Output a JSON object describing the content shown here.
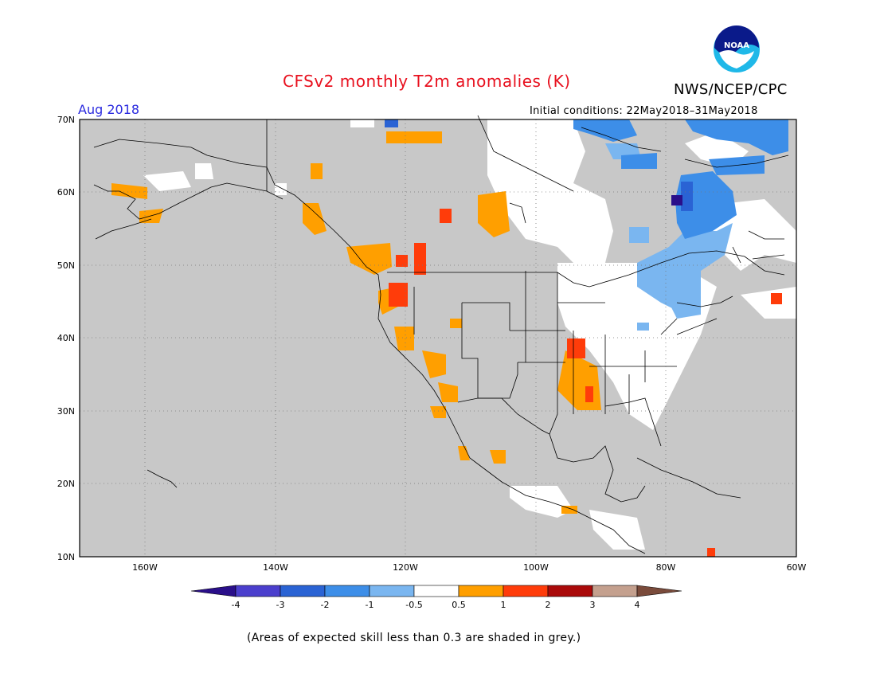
{
  "header": {
    "title": "CFSv2 monthly T2m anomalies (K)",
    "agency": "NWS/NCEP/CPC",
    "logo_text": "NOAA",
    "month": "Aug 2018",
    "initial_conditions": "Initial conditions: 22May2018–31May2018"
  },
  "map": {
    "region": "North America",
    "lat_ticks": [
      "70N",
      "60N",
      "50N",
      "40N",
      "30N",
      "20N",
      "10N"
    ],
    "lon_ticks": [
      "160W",
      "140W",
      "120W",
      "100W",
      "80W",
      "60W"
    ],
    "background_color": "#c8c8c8",
    "land_outline_color": "#000000",
    "gridline_style": "dotted"
  },
  "legend": {
    "values": [
      "-4",
      "-3",
      "-2",
      "-1",
      "-0.5",
      "0.5",
      "1",
      "2",
      "3",
      "4"
    ],
    "colors": [
      "#2a0f8a",
      "#4b3fcd",
      "#2a63d4",
      "#3d8ee8",
      "#7ab6f0",
      "#ffffff",
      "#ff9f00",
      "#ff3c0a",
      "#aa0a0a",
      "#c4a08e",
      "#7a4b3b"
    ]
  },
  "footnote": "(Areas of expected skill less than 0.3 are shaded in grey.)"
}
